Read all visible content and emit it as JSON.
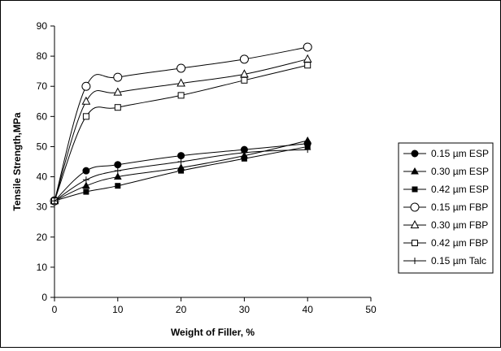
{
  "chart_data": {
    "type": "line",
    "title": "",
    "xlabel": "Weight of Filler, %",
    "ylabel": "Tensile Strength,MPa",
    "xlim": [
      0,
      50
    ],
    "ylim": [
      0,
      90
    ],
    "xticks": [
      0,
      10,
      20,
      30,
      40,
      50
    ],
    "yticks": [
      0,
      10,
      20,
      30,
      40,
      50,
      60,
      70,
      80,
      90
    ],
    "grid": false,
    "legend_position": "right",
    "x": [
      0,
      5,
      10,
      20,
      30,
      40
    ],
    "series": [
      {
        "name": "0.15 µm ESP",
        "marker": "filled-circle",
        "values": [
          32,
          42,
          44,
          47,
          49,
          51
        ]
      },
      {
        "name": "0.30 µm ESP",
        "marker": "filled-triangle",
        "values": [
          32,
          37,
          40,
          43,
          47,
          52
        ]
      },
      {
        "name": "0.42 µm ESP",
        "marker": "filled-square",
        "values": [
          32,
          35,
          37,
          42,
          46,
          50
        ]
      },
      {
        "name": "0.15 µm FBP",
        "marker": "open-circle",
        "values": [
          32,
          70,
          73,
          76,
          79,
          83
        ]
      },
      {
        "name": "0.30 µm FBP",
        "marker": "open-triangle",
        "values": [
          32,
          65,
          68,
          71,
          74,
          79
        ]
      },
      {
        "name": "0.42 µm FBP",
        "marker": "open-square",
        "values": [
          32,
          60,
          63,
          67,
          72,
          77
        ]
      },
      {
        "name": "0.15 µm Talc",
        "marker": "plus",
        "values": [
          32,
          39,
          42,
          45,
          48,
          49
        ]
      }
    ]
  }
}
